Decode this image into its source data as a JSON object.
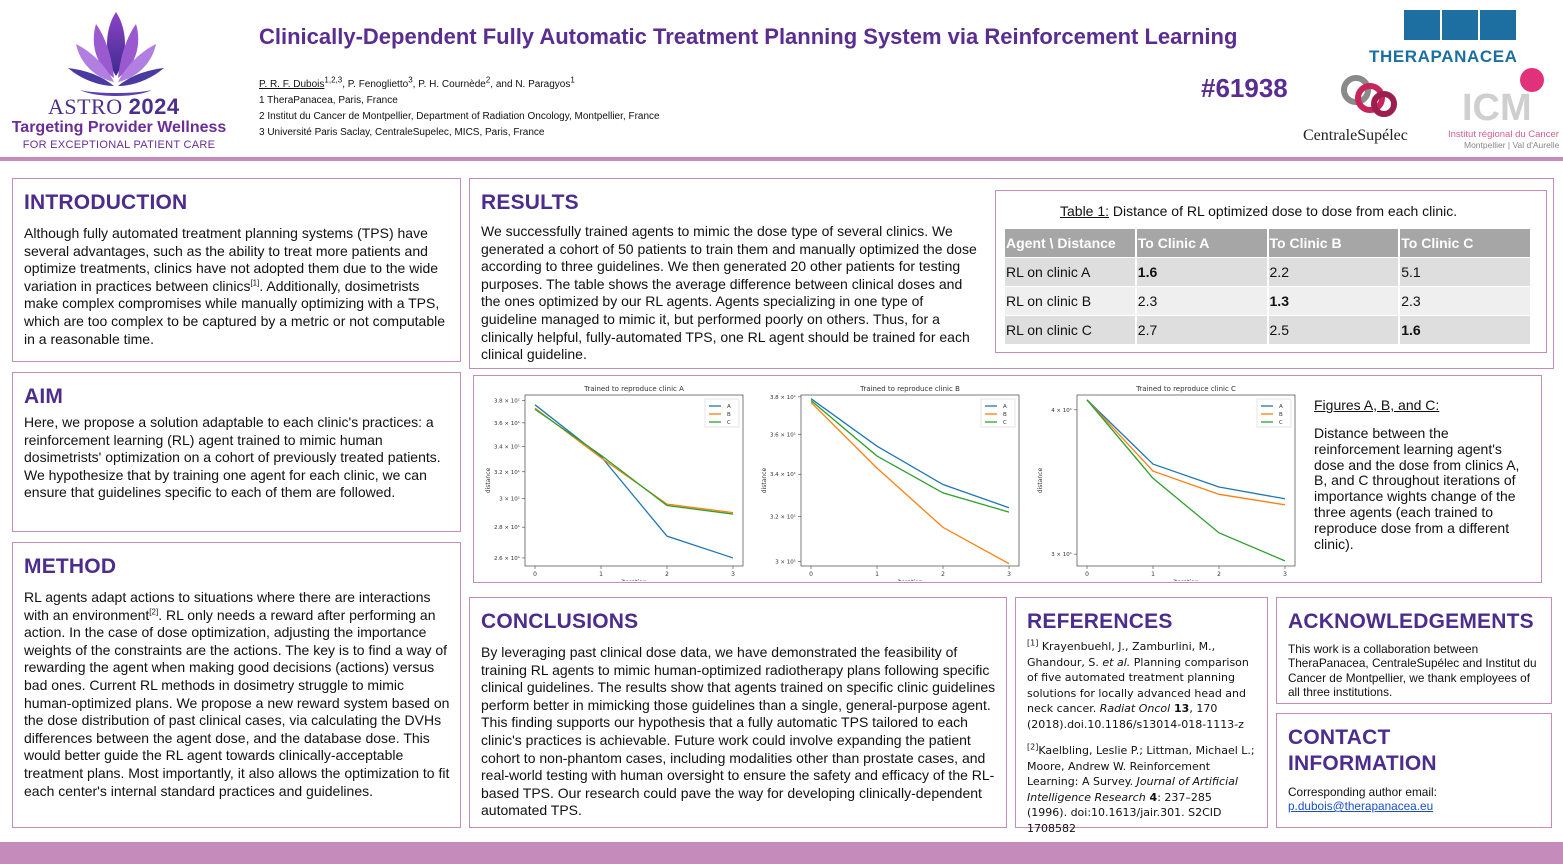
{
  "header": {
    "astro_word": "ASTRO",
    "astro_year": "2024",
    "tagline": "Targeting Provider Wellness",
    "subtagline": "FOR EXCEPTIONAL PATIENT CARE",
    "title": "Clinically-Dependent Fully Automatic Treatment Planning System via Reinforcement Learning",
    "authors": {
      "first": "P. R. F. Dubois",
      "first_sup": "1,2,3",
      "rest": ", P. Fenoglietto",
      "sup2": "3",
      "rest2": ", P. H. Cournède",
      "sup3": "2",
      "rest3": ", and N. Paragyos",
      "sup4": "1"
    },
    "affiliations": [
      "1 TheraPanacea, Paris, France",
      "2 Institut du Cancer de Montpellier, Department of Radiation Oncology, Montpellier, France",
      "3 Université Paris Saclay, CentraleSupelec, MICS, Paris, France"
    ],
    "abstract_number": "#61938",
    "logo_therapanacea": "THERAPANACEA",
    "logo_centralesupelec": "CentraleSupélec",
    "logo_icm_sub1": "Institut régional du Cancer",
    "logo_icm_sub2": "Montpellier | Val d'Aurelle"
  },
  "introduction": {
    "title": "INTRODUCTION",
    "text_a": "Although fully automated treatment planning systems (TPS) have several advantages, such as the ability to treat more patients and optimize treatments, clinics have not adopted them due to the wide variation in practices between clinics",
    "ref": "[1]",
    "text_b": ". Additionally, dosimetrists make complex compromises while manually optimizing with a TPS, which are too complex to be captured by a metric or not computable in a reasonable time."
  },
  "aim": {
    "title": "AIM",
    "text": "Here, we propose a solution adaptable to each clinic's practices: a reinforcement learning (RL) agent trained to mimic human dosimetrists' optimization on a cohort of previously treated patients. We hypothesize that by training one agent for each clinic, we can ensure that guidelines specific to each of them are followed."
  },
  "method": {
    "title": "METHOD",
    "text_a": "RL agents adapt actions to situations where there are interactions with an environment",
    "ref": "[2]",
    "text_b": ". RL only needs a reward after performing an action. In the case of dose optimization, adjusting the importance weights of the constraints are the actions. The key is to find a way of rewarding the agent when making good decisions (actions) versus bad ones. Current RL methods in dosimetry struggle to mimic human-optimized plans. We propose a new reward system based on the dose distribution of past clinical cases, via calculating the DVHs differences between the agent dose, and the database dose. This would better guide the RL agent towards clinically-acceptable treatment plans. Most importantly, it also allows the optimization to fit each center's internal standard practices and guidelines."
  },
  "results": {
    "title": "RESULTS",
    "text": "We successfully trained agents to mimic the dose type of several clinics. We generated a cohort of 50 patients to train them and manually optimized the dose according to three guidelines. We then generated 20 other patients for testing purposes. The table shows the average difference between clinical doses and the ones optimized by our RL agents. Agents specializing in one type of guideline managed to mimic it, but performed poorly on others. Thus, for a clinically helpful, fully-automated TPS, one RL agent should be trained for each clinical guideline."
  },
  "table": {
    "caption_label": "Table 1:",
    "caption_text": " Distance of RL optimized dose to dose from each clinic.",
    "headers": [
      "Agent \\ Distance",
      "To Clinic A",
      "To Clinic B",
      "To Clinic C"
    ],
    "rows": [
      [
        "RL on clinic A",
        "1.6",
        "2.2",
        "5.1"
      ],
      [
        "RL on clinic B",
        "2.3",
        "1.3",
        "2.3"
      ],
      [
        "RL on clinic C",
        "2.7",
        "2.5",
        "1.6"
      ]
    ]
  },
  "chart_data": [
    {
      "type": "line",
      "title": "Trained to reproduce clinic A",
      "xlabel": "iteration",
      "ylabel": "distance",
      "yscale": "log",
      "x": [
        0,
        1,
        2,
        3
      ],
      "xticks": [
        "0",
        "1",
        "2",
        "3"
      ],
      "ylim": [
        2.55,
        3.85
      ],
      "yticks": [
        {
          "v": 3.8,
          "label": "3.8 × 10¹"
        },
        {
          "v": 3.6,
          "label": "3.6 × 10¹"
        },
        {
          "v": 3.4,
          "label": "3.4 × 10¹"
        },
        {
          "v": 3.2,
          "label": "3.2 × 10¹"
        },
        {
          "v": 3.0,
          "label": "3 × 10¹"
        },
        {
          "v": 2.8,
          "label": "2.8 × 10¹"
        },
        {
          "v": 2.6,
          "label": "2.6 × 10¹"
        }
      ],
      "series": [
        {
          "name": "A",
          "color": "#1f77b4",
          "values": [
            3.76,
            3.32,
            2.74,
            2.6
          ]
        },
        {
          "name": "B",
          "color": "#ff7f0e",
          "values": [
            3.73,
            3.31,
            2.96,
            2.9
          ]
        },
        {
          "name": "C",
          "color": "#2ca02c",
          "values": [
            3.72,
            3.33,
            2.95,
            2.89
          ]
        }
      ],
      "legend": "top-right"
    },
    {
      "type": "line",
      "title": "Trained to reproduce clinic B",
      "xlabel": "iteration",
      "ylabel": "distance",
      "yscale": "log",
      "x": [
        0,
        1,
        2,
        3
      ],
      "xticks": [
        "0",
        "1",
        "2",
        "3"
      ],
      "ylim": [
        2.98,
        3.81
      ],
      "yticks": [
        {
          "v": 3.8,
          "label": "3.8 × 10¹"
        },
        {
          "v": 3.6,
          "label": "3.6 × 10¹"
        },
        {
          "v": 3.4,
          "label": "3.4 × 10¹"
        },
        {
          "v": 3.2,
          "label": "3.2 × 10¹"
        },
        {
          "v": 3.0,
          "label": "3 × 10¹"
        }
      ],
      "series": [
        {
          "name": "A",
          "color": "#1f77b4",
          "values": [
            3.79,
            3.54,
            3.35,
            3.24
          ]
        },
        {
          "name": "B",
          "color": "#ff7f0e",
          "values": [
            3.77,
            3.43,
            3.15,
            2.99
          ]
        },
        {
          "name": "C",
          "color": "#2ca02c",
          "values": [
            3.78,
            3.49,
            3.31,
            3.22
          ]
        }
      ],
      "legend": "top-right"
    },
    {
      "type": "line",
      "title": "Trained to reproduce clinic C",
      "xlabel": "iteration",
      "ylabel": "distance",
      "yscale": "log",
      "x": [
        0,
        1,
        2,
        3
      ],
      "xticks": [
        "0",
        "1",
        "2",
        "3"
      ],
      "ylim": [
        2.93,
        4.12
      ],
      "yticks": [
        {
          "v": 4.0,
          "label": "4 × 10¹"
        },
        {
          "v": 3.0,
          "label": "3 × 10¹"
        }
      ],
      "series": [
        {
          "name": "A",
          "color": "#1f77b4",
          "values": [
            4.08,
            3.59,
            3.43,
            3.35
          ]
        },
        {
          "name": "B",
          "color": "#ff7f0e",
          "values": [
            4.08,
            3.54,
            3.38,
            3.31
          ]
        },
        {
          "name": "C",
          "color": "#2ca02c",
          "values": [
            4.08,
            3.49,
            3.13,
            2.96
          ]
        }
      ],
      "legend": "top-right"
    }
  ],
  "figure_caption": {
    "title": "Figures A, B, and C:",
    "text": "Distance between the reinforcement learning agent's dose and the dose from clinics A, B, and C throughout iterations of importance wights change of the three agents (each trained to reproduce dose from a different clinic)."
  },
  "conclusions": {
    "title": "CONCLUSIONS",
    "text": "By leveraging past clinical dose data, we have demonstrated the feasibility of training RL agents to mimic human-optimized radiotherapy plans following specific clinical guidelines. The results show that agents trained on specific clinic guidelines perform better in mimicking those guidelines than a single, general-purpose agent. This finding supports our hypothesis that a fully automatic TPS tailored to each clinic's practices is achievable. Future work could involve expanding the patient cohort to non-phantom cases, including modalities other than prostate cases, and real-world testing with human oversight to ensure the safety and efficacy of the RL-based TPS. Our research could pave the way for developing clinically-dependent automated TPS."
  },
  "references": {
    "title": "REFERENCES",
    "ref1": {
      "num": "[1]",
      "authors": " Krayenbuehl, J., Zamburlini, M., Ghandour, S. ",
      "etal": "et al.",
      "title": " Planning comparison of five automated treatment planning solutions for locally advanced head and neck cancer. ",
      "journal": "Radiat Oncol",
      "vol": " 13",
      "tail": ", 170 (2018).doi.10.1186/s13014-018-1113-z"
    },
    "ref2": {
      "num": "[2]",
      "authors": "Kaelbling, Leslie P.; Littman, Michael L.; Moore, Andrew W. Reinforcement Learning: A Survey. ",
      "journal": "Journal of Artificial Intelligence Research",
      "vol": " 4",
      "tail": ": 237–285 (1996). doi:10.1613/jair.301. S2CID 1708582"
    }
  },
  "acknowledgements": {
    "title": "ACKNOWLEDGEMENTS",
    "text": "This work is a collaboration between TheraPanacea, CentraleSupélec and Institut du Cancer de Montpellier, we thank employees of all three institutions."
  },
  "contact": {
    "title_line1": "CONTACT",
    "title_line2": "INFORMATION",
    "label": "Corresponding author email:",
    "email": "p.dubois@therapanacea.eu"
  },
  "colors": {
    "accent_purple": "#5a2d91",
    "border_pink": "#c48bbb",
    "therapanacea_blue": "#1c6fa0",
    "icm_pink": "#d65c92"
  }
}
